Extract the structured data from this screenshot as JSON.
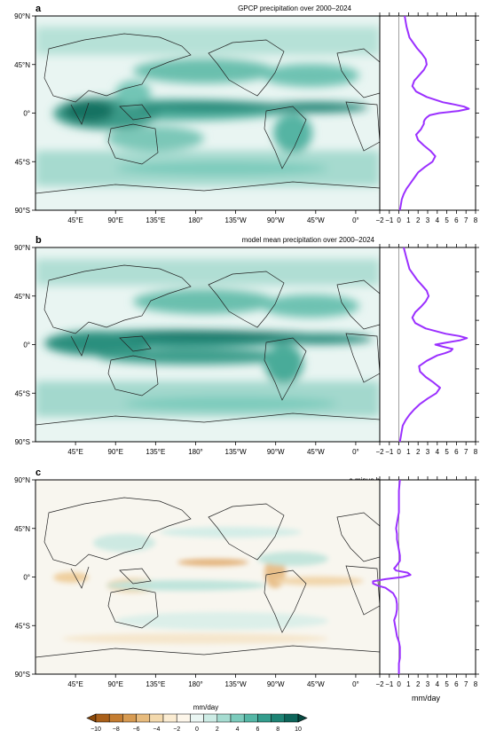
{
  "panels": [
    {
      "letter": "a",
      "title": "GPCP precipitation over 2000–2024"
    },
    {
      "letter": "b",
      "title": "model mean precipitation over 2000–2024"
    },
    {
      "letter": "c",
      "title": "a minus b"
    }
  ],
  "map_lon_ticks": [
    "45°E",
    "90°E",
    "135°E",
    "180°",
    "135°W",
    "90°W",
    "45°W",
    "0°"
  ],
  "map_lat_ticks": [
    "90°N",
    "45°N",
    "0°",
    "45°S",
    "90°S"
  ],
  "profile_x_ticks": [
    "−2",
    "−1",
    "0",
    "1",
    "2",
    "3",
    "4",
    "5",
    "6",
    "7",
    "8"
  ],
  "profile_xlabel": "mm/day",
  "profile_color": "#9b30ff",
  "colorbar": {
    "label": "mm/day",
    "ticks": [
      "−10",
      "−8",
      "−6",
      "−4",
      "−2",
      "0",
      "2",
      "4",
      "6",
      "8",
      "10"
    ],
    "colors": [
      "#8c4a0a",
      "#a9601a",
      "#c47d32",
      "#d79b52",
      "#e7bb7d",
      "#f3d9ad",
      "#fbecd2",
      "#fdf6ea",
      "#eaf6f3",
      "#cdece5",
      "#a6dcd1",
      "#7ccbbc",
      "#55b7a6",
      "#349d8d",
      "#1e8374",
      "#0d655a",
      "#064840"
    ]
  },
  "chart_data": [
    {
      "type": "line",
      "title": "GPCP precipitation over 2000–2024",
      "xlabel": "",
      "ylabel": "",
      "xlim": [
        -2,
        8
      ],
      "ylim": [
        -90,
        90
      ],
      "series": [
        {
          "lat": [
            90,
            80,
            70,
            60,
            55,
            50,
            45,
            40,
            35,
            30,
            25,
            20,
            15,
            10,
            8,
            6,
            4,
            2,
            0,
            -2,
            -4,
            -6,
            -8,
            -10,
            -15,
            -20,
            -25,
            -30,
            -35,
            -40,
            -45,
            -50,
            -55,
            -60,
            -65,
            -70,
            -75,
            -80,
            -85,
            -90
          ],
          "values": [
            0.6,
            0.8,
            1.1,
            1.9,
            2.4,
            2.8,
            2.9,
            2.6,
            2.1,
            1.6,
            1.4,
            1.8,
            2.9,
            4.6,
            5.8,
            6.8,
            7.3,
            6.2,
            4.2,
            3.2,
            2.9,
            2.7,
            2.6,
            2.6,
            2.3,
            1.8,
            2.0,
            2.6,
            3.3,
            3.8,
            3.5,
            2.7,
            2.0,
            1.6,
            1.2,
            0.8,
            0.5,
            0.3,
            0.2,
            0.1
          ]
        }
      ]
    },
    {
      "type": "line",
      "title": "model mean precipitation over 2000–2024",
      "xlabel": "",
      "ylabel": "",
      "xlim": [
        -2,
        8
      ],
      "ylim": [
        -90,
        90
      ],
      "series": [
        {
          "lat": [
            90,
            80,
            70,
            60,
            55,
            50,
            45,
            40,
            35,
            30,
            25,
            20,
            15,
            10,
            8,
            6,
            4,
            2,
            0,
            -2,
            -4,
            -6,
            -8,
            -10,
            -15,
            -20,
            -25,
            -30,
            -35,
            -40,
            -45,
            -50,
            -55,
            -60,
            -65,
            -70,
            -75,
            -80,
            -85,
            -90
          ],
          "values": [
            0.5,
            0.8,
            1.1,
            1.9,
            2.4,
            2.9,
            3.1,
            2.8,
            2.3,
            1.7,
            1.4,
            1.7,
            2.8,
            4.9,
            6.3,
            7.1,
            6.4,
            5.0,
            3.8,
            4.6,
            5.6,
            5.4,
            4.8,
            4.0,
            2.9,
            2.1,
            2.2,
            2.8,
            3.6,
            4.3,
            3.9,
            3.0,
            2.2,
            1.6,
            1.1,
            0.7,
            0.4,
            0.3,
            0.2,
            0.1
          ]
        }
      ]
    },
    {
      "type": "line",
      "title": "a minus b",
      "xlabel": "mm/day",
      "ylabel": "",
      "xlim": [
        -2,
        8
      ],
      "ylim": [
        -90,
        90
      ],
      "series": [
        {
          "lat": [
            90,
            80,
            70,
            60,
            55,
            50,
            45,
            40,
            35,
            30,
            25,
            20,
            15,
            10,
            8,
            6,
            4,
            2,
            0,
            -2,
            -4,
            -6,
            -8,
            -10,
            -15,
            -20,
            -25,
            -30,
            -35,
            -40,
            -45,
            -50,
            -55,
            -60,
            -65,
            -70,
            -75,
            -80,
            -85,
            -90
          ],
          "values": [
            0.1,
            0.0,
            0.0,
            0.0,
            -0.1,
            -0.2,
            -0.3,
            -0.2,
            -0.2,
            -0.1,
            0.0,
            0.1,
            0.1,
            -0.3,
            -0.5,
            -0.3,
            0.9,
            1.2,
            0.4,
            -1.4,
            -2.7,
            -2.7,
            -2.2,
            -1.4,
            -0.6,
            -0.3,
            -0.2,
            -0.2,
            -0.3,
            -0.5,
            -0.4,
            -0.3,
            -0.2,
            0.0,
            0.1,
            0.1,
            0.1,
            0.0,
            0.0,
            0.0
          ]
        }
      ]
    }
  ]
}
